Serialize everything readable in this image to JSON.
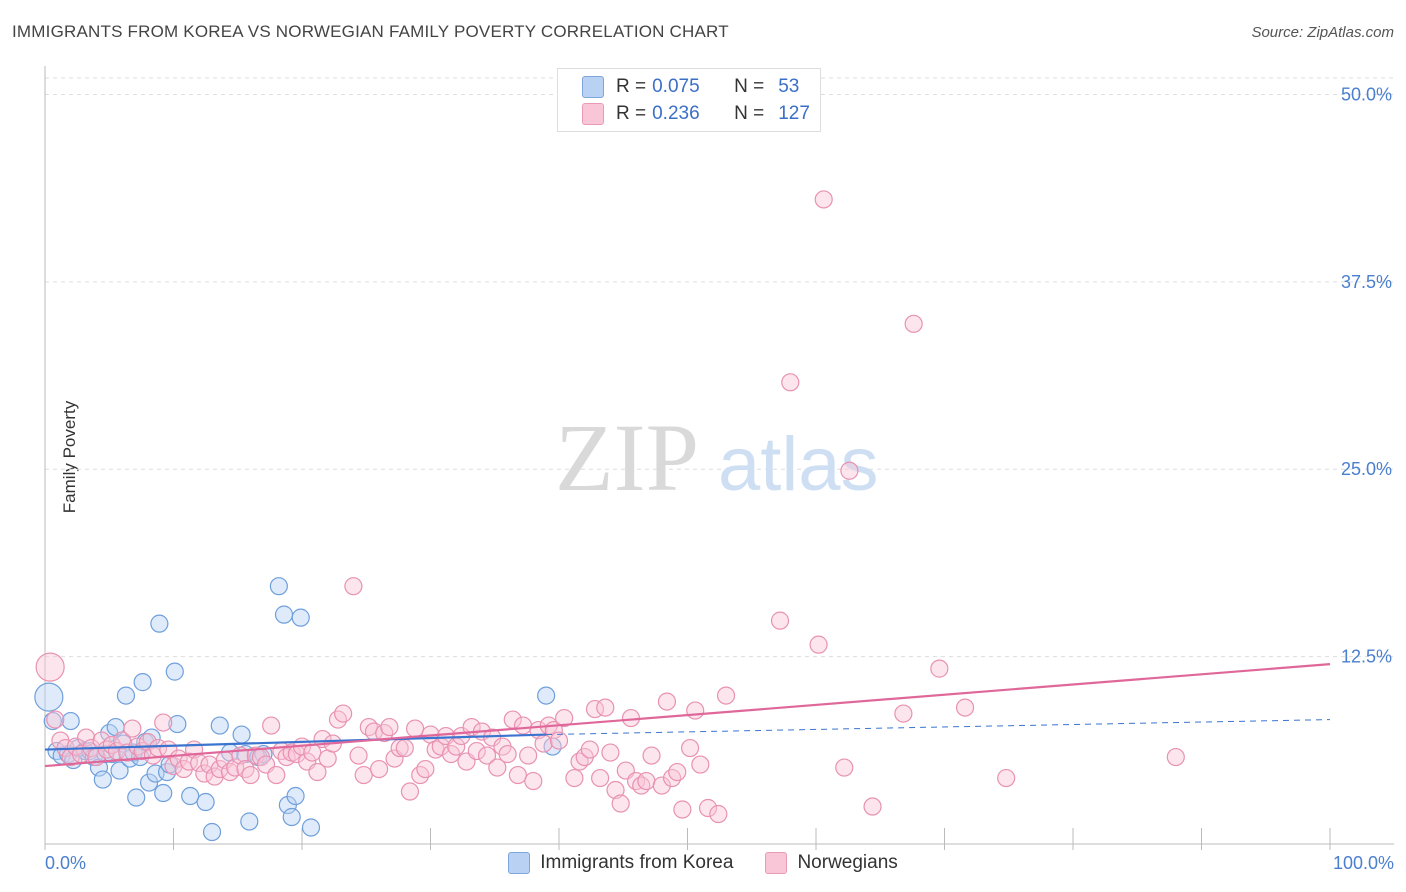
{
  "header": {
    "title": "IMMIGRANTS FROM KOREA VS NORWEGIAN FAMILY POVERTY CORRELATION CHART",
    "source": "Source: ZipAtlas.com"
  },
  "watermark": {
    "zip": "ZIP",
    "atlas": "atlas"
  },
  "legend": {
    "r_label": "R =",
    "n_label": "N =",
    "series": [
      {
        "r": "0.075",
        "n": "53",
        "fill": "#b9d2f3",
        "stroke": "#7fa6dc"
      },
      {
        "r": "0.236",
        "n": "127",
        "fill": "#f8c6d6",
        "stroke": "#e99bb5"
      }
    ]
  },
  "bottom_legend": [
    {
      "label": "Immigrants from Korea",
      "fill": "#b9d2f3",
      "stroke": "#7fa6dc"
    },
    {
      "label": "Norwegians",
      "fill": "#f8c6d6",
      "stroke": "#e99bb5"
    }
  ],
  "chart_data": {
    "type": "scatter",
    "title": "IMMIGRANTS FROM KOREA VS NORWEGIAN FAMILY POVERTY CORRELATION CHART",
    "xlabel": "",
    "ylabel": "Family Poverty",
    "xlim": [
      0,
      100
    ],
    "ylim": [
      0,
      51.5
    ],
    "x_tick_labels": [
      "0.0%",
      "100.0%"
    ],
    "y_ticks": [
      12.5,
      25.0,
      37.5,
      50.0
    ],
    "y_tick_labels": [
      "12.5%",
      "25.0%",
      "37.5%",
      "50.0%"
    ],
    "grid": true,
    "series": [
      {
        "name": "Immigrants from Korea",
        "color": "#6f9fdc",
        "fill": "#b9d2f3",
        "trend": {
          "x0": 0,
          "y0": 6.3,
          "x1": 39,
          "y1": 7.3,
          "dash_to_x": 100,
          "dash_to_y": 8.3,
          "color": "#3b74cf"
        },
        "points": [
          {
            "x": 0.3,
            "y": 9.8,
            "r": 14
          },
          {
            "x": 0.6,
            "y": 8.2
          },
          {
            "x": 0.9,
            "y": 6.2
          },
          {
            "x": 1.3,
            "y": 5.9
          },
          {
            "x": 1.8,
            "y": 6.0
          },
          {
            "x": 2.0,
            "y": 8.2
          },
          {
            "x": 2.2,
            "y": 5.6
          },
          {
            "x": 2.6,
            "y": 6.4
          },
          {
            "x": 3.1,
            "y": 6.2
          },
          {
            "x": 3.5,
            "y": 6.2
          },
          {
            "x": 3.8,
            "y": 5.8
          },
          {
            "x": 4.2,
            "y": 5.1
          },
          {
            "x": 4.5,
            "y": 4.3
          },
          {
            "x": 4.7,
            "y": 6.0
          },
          {
            "x": 5.0,
            "y": 7.4
          },
          {
            "x": 5.2,
            "y": 6.0
          },
          {
            "x": 5.5,
            "y": 7.8
          },
          {
            "x": 5.8,
            "y": 4.9
          },
          {
            "x": 6.1,
            "y": 6.7
          },
          {
            "x": 6.3,
            "y": 9.9
          },
          {
            "x": 6.6,
            "y": 5.7
          },
          {
            "x": 6.9,
            "y": 6.1
          },
          {
            "x": 7.1,
            "y": 3.1
          },
          {
            "x": 7.4,
            "y": 5.8
          },
          {
            "x": 7.6,
            "y": 10.8
          },
          {
            "x": 7.8,
            "y": 6.8
          },
          {
            "x": 8.1,
            "y": 4.1
          },
          {
            "x": 8.3,
            "y": 7.1
          },
          {
            "x": 8.6,
            "y": 4.7
          },
          {
            "x": 8.9,
            "y": 14.7
          },
          {
            "x": 9.2,
            "y": 3.4
          },
          {
            "x": 9.5,
            "y": 4.8
          },
          {
            "x": 9.7,
            "y": 5.3
          },
          {
            "x": 10.1,
            "y": 11.5
          },
          {
            "x": 10.3,
            "y": 8.0
          },
          {
            "x": 11.3,
            "y": 3.2
          },
          {
            "x": 12.5,
            "y": 2.8
          },
          {
            "x": 13.0,
            "y": 0.8
          },
          {
            "x": 13.6,
            "y": 7.9
          },
          {
            "x": 14.4,
            "y": 6.1
          },
          {
            "x": 15.3,
            "y": 7.3
          },
          {
            "x": 15.6,
            "y": 6.0
          },
          {
            "x": 15.9,
            "y": 1.5
          },
          {
            "x": 16.6,
            "y": 5.8
          },
          {
            "x": 17.0,
            "y": 6.0
          },
          {
            "x": 18.2,
            "y": 17.2
          },
          {
            "x": 18.6,
            "y": 15.3
          },
          {
            "x": 18.9,
            "y": 2.6
          },
          {
            "x": 19.2,
            "y": 1.8
          },
          {
            "x": 19.5,
            "y": 3.2
          },
          {
            "x": 19.9,
            "y": 15.1
          },
          {
            "x": 20.7,
            "y": 1.1
          },
          {
            "x": 39.5,
            "y": 6.5
          },
          {
            "x": 39.0,
            "y": 9.9
          }
        ]
      },
      {
        "name": "Norwegians",
        "color": "#e892b1",
        "fill": "#f8c6d6",
        "trend": {
          "x0": 0,
          "y0": 5.2,
          "x1": 100,
          "y1": 12.0,
          "color": "#e0679a"
        },
        "points": [
          {
            "x": 0.4,
            "y": 11.8,
            "r": 14
          },
          {
            "x": 0.8,
            "y": 8.3
          },
          {
            "x": 1.2,
            "y": 6.9
          },
          {
            "x": 1.6,
            "y": 6.4
          },
          {
            "x": 2.0,
            "y": 5.8
          },
          {
            "x": 2.4,
            "y": 6.5
          },
          {
            "x": 2.8,
            "y": 6.0
          },
          {
            "x": 3.2,
            "y": 7.1
          },
          {
            "x": 3.6,
            "y": 6.4
          },
          {
            "x": 4.0,
            "y": 5.8
          },
          {
            "x": 4.4,
            "y": 6.9
          },
          {
            "x": 4.8,
            "y": 6.3
          },
          {
            "x": 5.2,
            "y": 6.6
          },
          {
            "x": 5.6,
            "y": 6.2
          },
          {
            "x": 6.0,
            "y": 6.9
          },
          {
            "x": 6.4,
            "y": 6.1
          },
          {
            "x": 6.8,
            "y": 7.7
          },
          {
            "x": 7.2,
            "y": 6.5
          },
          {
            "x": 7.6,
            "y": 6.2
          },
          {
            "x": 8.0,
            "y": 6.8
          },
          {
            "x": 8.4,
            "y": 5.9
          },
          {
            "x": 8.8,
            "y": 6.4
          },
          {
            "x": 9.2,
            "y": 8.1
          },
          {
            "x": 9.6,
            "y": 6.3
          },
          {
            "x": 10.0,
            "y": 5.2
          },
          {
            "x": 10.4,
            "y": 5.7
          },
          {
            "x": 10.8,
            "y": 5.0
          },
          {
            "x": 11.2,
            "y": 5.5
          },
          {
            "x": 11.6,
            "y": 6.3
          },
          {
            "x": 12.0,
            "y": 5.4
          },
          {
            "x": 12.4,
            "y": 4.7
          },
          {
            "x": 12.8,
            "y": 5.3
          },
          {
            "x": 13.2,
            "y": 4.5
          },
          {
            "x": 13.6,
            "y": 5.0
          },
          {
            "x": 14.0,
            "y": 5.6
          },
          {
            "x": 14.4,
            "y": 4.8
          },
          {
            "x": 14.8,
            "y": 5.1
          },
          {
            "x": 15.2,
            "y": 5.9
          },
          {
            "x": 15.6,
            "y": 5.0
          },
          {
            "x": 16.0,
            "y": 4.6
          },
          {
            "x": 16.4,
            "y": 5.9
          },
          {
            "x": 16.8,
            "y": 5.8
          },
          {
            "x": 17.2,
            "y": 5.3
          },
          {
            "x": 17.6,
            "y": 7.9
          },
          {
            "x": 18.0,
            "y": 4.6
          },
          {
            "x": 18.4,
            "y": 6.2
          },
          {
            "x": 18.8,
            "y": 5.8
          },
          {
            "x": 19.2,
            "y": 6.1
          },
          {
            "x": 19.6,
            "y": 6.0
          },
          {
            "x": 20.0,
            "y": 6.5
          },
          {
            "x": 20.4,
            "y": 5.5
          },
          {
            "x": 20.8,
            "y": 6.1
          },
          {
            "x": 21.2,
            "y": 4.8
          },
          {
            "x": 21.6,
            "y": 7.0
          },
          {
            "x": 22.0,
            "y": 5.7
          },
          {
            "x": 22.4,
            "y": 6.7
          },
          {
            "x": 22.8,
            "y": 8.3
          },
          {
            "x": 23.2,
            "y": 8.7
          },
          {
            "x": 24.0,
            "y": 17.2
          },
          {
            "x": 24.4,
            "y": 5.9
          },
          {
            "x": 24.8,
            "y": 4.6
          },
          {
            "x": 25.2,
            "y": 7.8
          },
          {
            "x": 25.6,
            "y": 7.5
          },
          {
            "x": 26.0,
            "y": 5.0
          },
          {
            "x": 26.4,
            "y": 7.4
          },
          {
            "x": 26.8,
            "y": 7.8
          },
          {
            "x": 27.2,
            "y": 5.7
          },
          {
            "x": 27.6,
            "y": 6.4
          },
          {
            "x": 28.0,
            "y": 6.4
          },
          {
            "x": 28.4,
            "y": 3.5
          },
          {
            "x": 28.8,
            "y": 7.7
          },
          {
            "x": 29.2,
            "y": 4.6
          },
          {
            "x": 29.6,
            "y": 5.0
          },
          {
            "x": 30.0,
            "y": 7.3
          },
          {
            "x": 30.4,
            "y": 6.3
          },
          {
            "x": 30.8,
            "y": 6.5
          },
          {
            "x": 31.2,
            "y": 7.2
          },
          {
            "x": 31.6,
            "y": 6.0
          },
          {
            "x": 32.0,
            "y": 6.5
          },
          {
            "x": 32.4,
            "y": 7.2
          },
          {
            "x": 32.8,
            "y": 5.5
          },
          {
            "x": 33.2,
            "y": 7.8
          },
          {
            "x": 33.6,
            "y": 6.2
          },
          {
            "x": 34.0,
            "y": 7.5
          },
          {
            "x": 34.4,
            "y": 5.9
          },
          {
            "x": 34.8,
            "y": 7.1
          },
          {
            "x": 35.2,
            "y": 5.1
          },
          {
            "x": 35.6,
            "y": 6.5
          },
          {
            "x": 36.0,
            "y": 6.0
          },
          {
            "x": 36.4,
            "y": 8.3
          },
          {
            "x": 36.8,
            "y": 4.6
          },
          {
            "x": 37.2,
            "y": 7.9
          },
          {
            "x": 37.6,
            "y": 5.9
          },
          {
            "x": 38.0,
            "y": 4.2
          },
          {
            "x": 38.4,
            "y": 7.6
          },
          {
            "x": 38.8,
            "y": 6.7
          },
          {
            "x": 39.2,
            "y": 7.9
          },
          {
            "x": 39.6,
            "y": 7.6
          },
          {
            "x": 40.0,
            "y": 6.9
          },
          {
            "x": 40.4,
            "y": 8.4
          },
          {
            "x": 41.2,
            "y": 4.4
          },
          {
            "x": 41.6,
            "y": 5.5
          },
          {
            "x": 42.0,
            "y": 5.8
          },
          {
            "x": 42.4,
            "y": 6.3
          },
          {
            "x": 42.8,
            "y": 9.0
          },
          {
            "x": 43.2,
            "y": 4.4
          },
          {
            "x": 43.6,
            "y": 9.1
          },
          {
            "x": 44.0,
            "y": 6.1
          },
          {
            "x": 44.4,
            "y": 3.6
          },
          {
            "x": 44.8,
            "y": 2.7
          },
          {
            "x": 45.2,
            "y": 4.9
          },
          {
            "x": 45.6,
            "y": 8.4
          },
          {
            "x": 46.0,
            "y": 4.2
          },
          {
            "x": 46.4,
            "y": 3.9
          },
          {
            "x": 46.8,
            "y": 4.2
          },
          {
            "x": 47.2,
            "y": 5.9
          },
          {
            "x": 48.0,
            "y": 3.9
          },
          {
            "x": 48.4,
            "y": 9.5
          },
          {
            "x": 48.8,
            "y": 4.4
          },
          {
            "x": 49.2,
            "y": 4.8
          },
          {
            "x": 49.6,
            "y": 2.3
          },
          {
            "x": 50.2,
            "y": 6.4
          },
          {
            "x": 50.6,
            "y": 8.9
          },
          {
            "x": 51.0,
            "y": 5.3
          },
          {
            "x": 51.6,
            "y": 2.4
          },
          {
            "x": 52.4,
            "y": 2.0
          },
          {
            "x": 53.0,
            "y": 9.9
          },
          {
            "x": 60.6,
            "y": 43.0
          },
          {
            "x": 58.0,
            "y": 30.8
          },
          {
            "x": 57.2,
            "y": 14.9
          },
          {
            "x": 60.2,
            "y": 13.3
          },
          {
            "x": 62.2,
            "y": 5.1
          },
          {
            "x": 64.4,
            "y": 2.5
          },
          {
            "x": 66.8,
            "y": 8.7
          },
          {
            "x": 67.6,
            "y": 34.7
          },
          {
            "x": 69.6,
            "y": 11.7
          },
          {
            "x": 71.6,
            "y": 9.1
          },
          {
            "x": 74.8,
            "y": 4.4
          },
          {
            "x": 88.0,
            "y": 5.8
          },
          {
            "x": 62.6,
            "y": 24.9
          }
        ]
      }
    ]
  }
}
